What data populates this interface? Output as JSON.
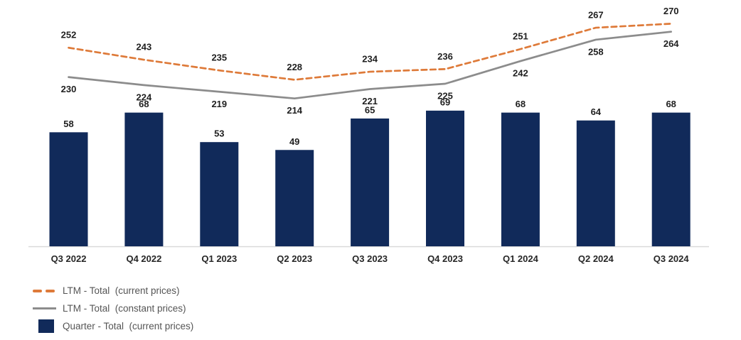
{
  "chart_data": {
    "type": "combo",
    "title": "",
    "categories": [
      "Q3 2022",
      "Q4 2022",
      "Q1 2023",
      "Q2 2023",
      "Q3 2023",
      "Q4 2023",
      "Q1 2024",
      "Q2 2024",
      "Q3 2024"
    ],
    "series": [
      {
        "name": "LTM - Total  (current prices)",
        "type": "line",
        "line_style": "dashed",
        "color": "#DE7A39",
        "values": [
          252,
          243,
          235,
          228,
          234,
          236,
          251,
          267,
          270
        ]
      },
      {
        "name": "LTM - Total  (constant prices)",
        "type": "line",
        "line_style": "solid",
        "color": "#8C8C8C",
        "values": [
          230,
          224,
          219,
          214,
          221,
          225,
          242,
          258,
          264
        ]
      },
      {
        "name": "Quarter - Total  (current prices)",
        "type": "bar",
        "color": "#112A5A",
        "values": [
          58,
          68,
          53,
          49,
          65,
          69,
          68,
          64,
          68
        ]
      }
    ],
    "data_labels": true,
    "grid": false,
    "legend_position": "bottom-left",
    "axis_line_color": "#D9D9D9",
    "label_color": "#1F1F1F"
  }
}
